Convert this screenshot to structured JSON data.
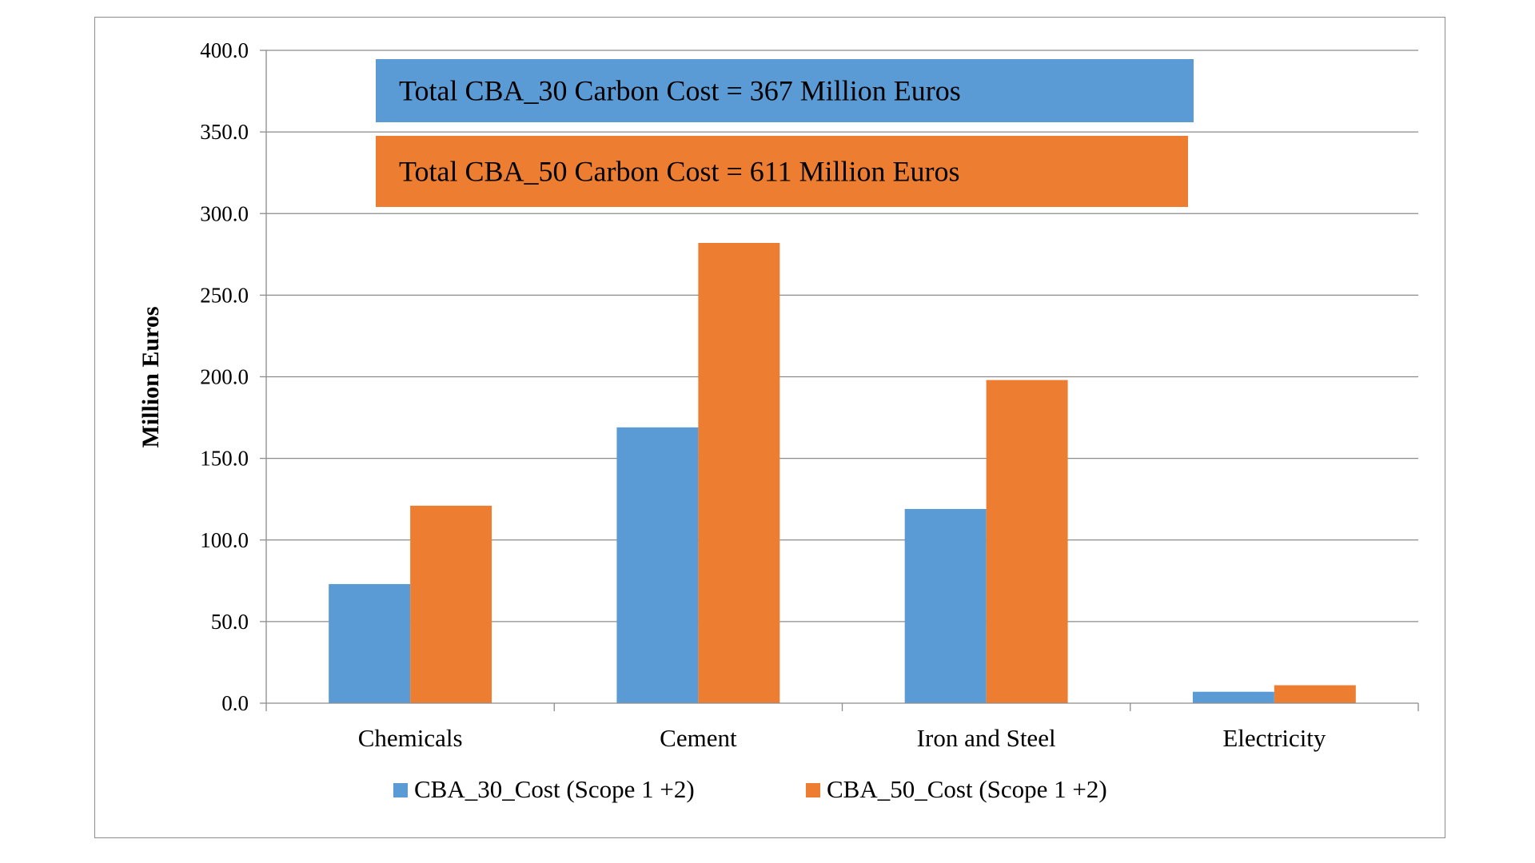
{
  "chart_data": {
    "type": "bar",
    "title": "",
    "xlabel": "",
    "ylabel": "Million Euros",
    "ylim": [
      0,
      400
    ],
    "yticks": [
      "0.0",
      "50.0",
      "100.0",
      "150.0",
      "200.0",
      "250.0",
      "300.0",
      "350.0",
      "400.0"
    ],
    "grid": true,
    "legend_position": "bottom",
    "categories": [
      "Chemicals",
      "Cement",
      "Iron and Steel",
      "Electricity"
    ],
    "series": [
      {
        "name": "CBA_30_Cost (Scope 1 +2)",
        "color": "#5b9bd5",
        "values": [
          73,
          169,
          119,
          7
        ]
      },
      {
        "name": "CBA_50_Cost (Scope 1 +2)",
        "color": "#ed7d31",
        "values": [
          121,
          282,
          198,
          11
        ]
      }
    ],
    "annotations": [
      {
        "text": "Total CBA_30 Carbon Cost = 367 Million Euros",
        "color": "#5b9bd5"
      },
      {
        "text": "Total CBA_50 Carbon Cost = 611 Million Euros",
        "color": "#ed7d31"
      }
    ]
  }
}
